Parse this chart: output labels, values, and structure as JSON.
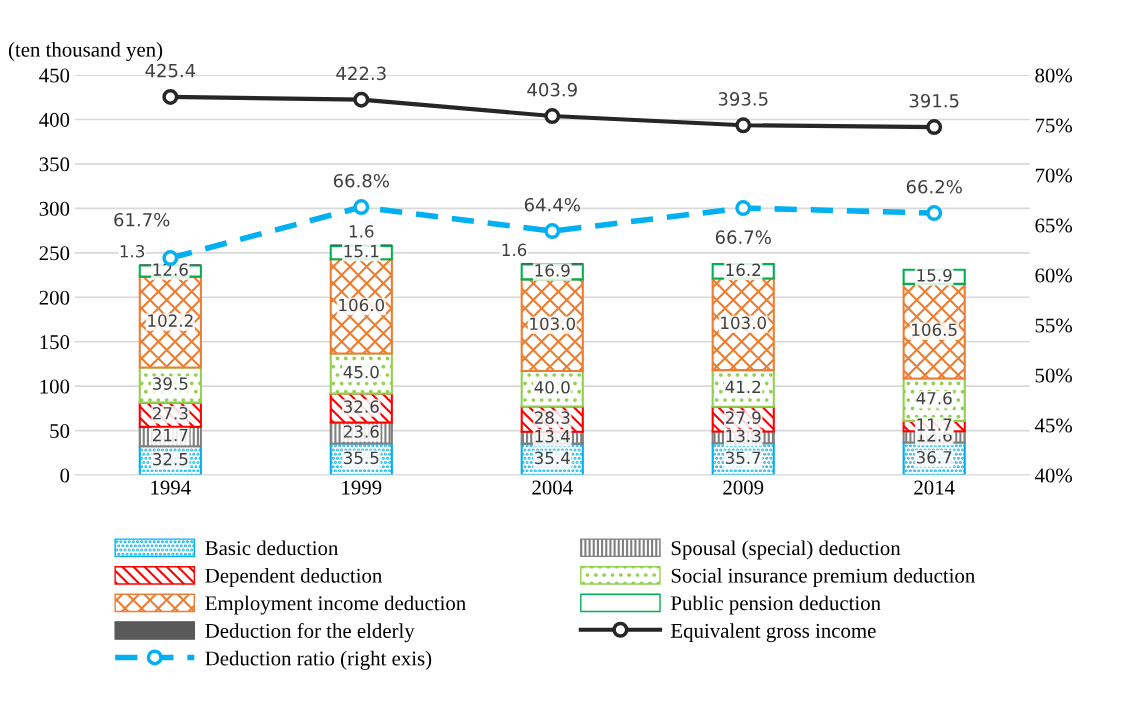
{
  "chart_data": {
    "type": "bar",
    "stacked": true,
    "ylabel": "(ten thousand yen)",
    "categories": [
      "1994",
      "1999",
      "2004",
      "2009",
      "2014"
    ],
    "series": [
      {
        "name": "Basic deduction",
        "color": "#00b0f0",
        "values": [
          32.5,
          35.5,
          35.4,
          35.7,
          36.7
        ],
        "value_labels": [
          "32.5",
          "35.5",
          "35.4",
          "35.7",
          "36.7"
        ]
      },
      {
        "name": "Spousal (special) deduction",
        "color": "#7f7f7f",
        "values": [
          21.7,
          23.6,
          13.4,
          13.3,
          12.6
        ],
        "value_labels": [
          "21.7",
          "23.6",
          "13.4",
          "13.3",
          "12.6"
        ]
      },
      {
        "name": "Dependent deduction",
        "color": "#ff0000",
        "values": [
          27.3,
          32.6,
          28.3,
          27.9,
          11.7
        ],
        "value_labels": [
          "27.3",
          "32.6",
          "28.3",
          "27.9",
          "11.7"
        ]
      },
      {
        "name": "Social insurance premium deduction",
        "color": "#92d050",
        "values": [
          39.5,
          45.0,
          40.0,
          41.2,
          47.6
        ],
        "value_labels": [
          "39.5",
          "45.0",
          "40.0",
          "41.2",
          "47.6"
        ]
      },
      {
        "name": "Employment income deduction",
        "color": "#ed7d31",
        "values": [
          102.2,
          106.0,
          103.0,
          103.0,
          106.5
        ],
        "value_labels": [
          "102.2",
          "106.0",
          "103.0",
          "103.0",
          "106.5"
        ]
      },
      {
        "name": "Public pension deduction",
        "color": "#00b050",
        "values": [
          12.6,
          15.1,
          16.9,
          16.2,
          15.9
        ],
        "value_labels": [
          "12.6",
          "15.1",
          "16.9",
          "16.2",
          "15.9"
        ]
      },
      {
        "name": "Deduction for the elderly",
        "color": "#595959",
        "values": [
          1.3,
          1.6,
          1.6,
          null,
          null
        ],
        "value_labels": [
          "1.3",
          "1.6",
          "1.6",
          null,
          null
        ]
      },
      {
        "name": "Equivalent gross income",
        "type": "line",
        "color": "#262626",
        "marker": "circle",
        "line_style": "solid",
        "values": [
          425.4,
          422.3,
          403.9,
          393.5,
          391.5
        ],
        "value_labels": [
          "425.4",
          "422.3",
          "403.9",
          "393.5",
          "391.5"
        ]
      },
      {
        "name": "Deduction ratio (right exis)",
        "type": "line",
        "axis": "y2",
        "color": "#00b0f0",
        "marker": "circle",
        "line_style": "dashed",
        "values": [
          61.7,
          66.8,
          64.4,
          66.7,
          66.2
        ],
        "value_labels": [
          "61.7%",
          "66.8%",
          "64.4%",
          "66.7%",
          "66.2%"
        ]
      }
    ],
    "ylim": [
      0,
      450
    ],
    "yticks": [
      0,
      50,
      100,
      150,
      200,
      250,
      300,
      350,
      400,
      450
    ],
    "y2lim": [
      40,
      80
    ],
    "y2ticks": [
      {
        "value": 40,
        "label": "40%"
      },
      {
        "value": 45,
        "label": "45%"
      },
      {
        "value": 50,
        "label": "50%"
      },
      {
        "value": 55,
        "label": "55%"
      },
      {
        "value": 60,
        "label": "60%"
      },
      {
        "value": 65,
        "label": "65%"
      },
      {
        "value": 70,
        "label": "70%"
      },
      {
        "value": 75,
        "label": "75%"
      },
      {
        "value": 80,
        "label": "80%"
      }
    ],
    "grid": "y",
    "legend": "bottom"
  }
}
